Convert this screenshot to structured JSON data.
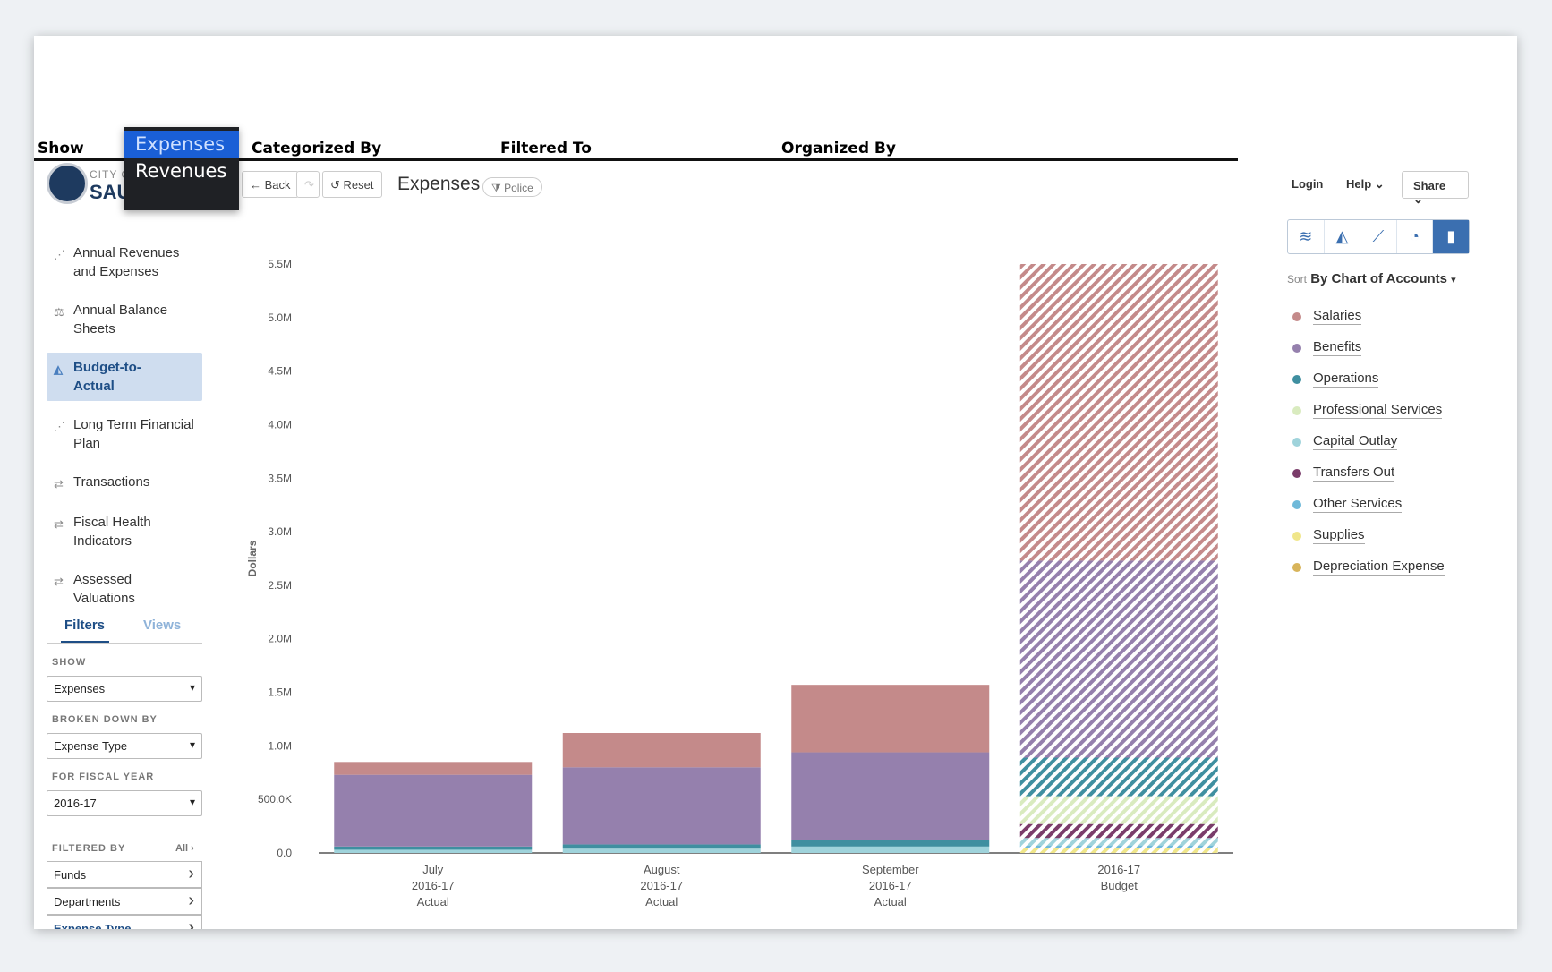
{
  "excel": {
    "labels": [
      "Show",
      "Categorized By",
      "Filtered To",
      "Organized By"
    ],
    "dropdown_options": [
      "Expenses",
      "Revenues"
    ],
    "dropdown_selected": "Expenses"
  },
  "brand": {
    "small": "CITY O",
    "big": "SAU"
  },
  "nav": [
    {
      "label": "Annual Revenues and Expenses",
      "icon": "scatter-icon"
    },
    {
      "label": "Annual Balance Sheets",
      "icon": "balance-scale-icon"
    },
    {
      "label": "Budget-to-Actual",
      "icon": "area-chart-icon",
      "active": true
    },
    {
      "label": "Long Term Financial Plan",
      "icon": "scatter-icon"
    },
    {
      "label": "Transactions",
      "icon": "transfer-icon"
    },
    {
      "label": "Fiscal Health Indicators",
      "icon": "transfer-icon"
    },
    {
      "label": "Assessed Valuations",
      "icon": "transfer-icon"
    }
  ],
  "tabs": {
    "filters": "Filters",
    "views": "Views"
  },
  "filters": {
    "show_label": "SHOW",
    "show_value": "Expenses",
    "broken_label": "BROKEN DOWN BY",
    "broken_value": "Expense Type",
    "fy_label": "FOR FISCAL YEAR",
    "fy_value": "2016-17",
    "filtered_label": "FILTERED BY",
    "all_label": "All",
    "rows": [
      "Funds",
      "Departments",
      "Expense Type"
    ]
  },
  "toolbar": {
    "back": "Back",
    "reset": "Reset",
    "title": "Expenses",
    "pill": "Police",
    "login": "Login",
    "help": "Help",
    "share": "Share"
  },
  "sort": {
    "prefix": "Sort",
    "value": "By Chart of Accounts"
  },
  "colors": {
    "Salaries": "#c48a8a",
    "Benefits": "#9580ad",
    "Operations": "#3f8fa0",
    "Professional Services": "#d9ebbf",
    "Capital Outlay": "#9fd3db",
    "Transfers Out": "#7a3c6a",
    "Other Services": "#6fb9d9",
    "Supplies": "#f0e68a",
    "Depreciation Expense": "#d8b45a"
  },
  "chart_data": {
    "type": "bar",
    "stacked": true,
    "ylabel": "Dollars",
    "ylim": [
      0,
      5500000
    ],
    "yticks": [
      "0.0",
      "500.0K",
      "1.0M",
      "1.5M",
      "2.0M",
      "2.5M",
      "3.0M",
      "3.5M",
      "4.0M",
      "4.5M",
      "5.0M",
      "5.5M"
    ],
    "categories": [
      [
        "July",
        "2016-17",
        "Actual"
      ],
      [
        "August",
        "2016-17",
        "Actual"
      ],
      [
        "September",
        "2016-17",
        "Actual"
      ],
      [
        "2016-17",
        "Budget"
      ]
    ],
    "hatched": [
      false,
      false,
      false,
      true
    ],
    "series": [
      {
        "name": "Supplies",
        "values": [
          0,
          0,
          0,
          50000
        ]
      },
      {
        "name": "Other Services",
        "values": [
          0,
          0,
          0,
          20000
        ]
      },
      {
        "name": "Capital Outlay",
        "values": [
          30000,
          40000,
          60000,
          70000
        ]
      },
      {
        "name": "Transfers Out",
        "values": [
          0,
          0,
          0,
          130000
        ]
      },
      {
        "name": "Professional Services",
        "values": [
          0,
          0,
          0,
          260000
        ]
      },
      {
        "name": "Operations",
        "values": [
          30000,
          40000,
          60000,
          360000
        ]
      },
      {
        "name": "Benefits",
        "values": [
          670000,
          720000,
          820000,
          1840000
        ]
      },
      {
        "name": "Salaries",
        "values": [
          120000,
          320000,
          630000,
          2770000
        ]
      }
    ]
  },
  "legend": [
    "Salaries",
    "Benefits",
    "Operations",
    "Professional Services",
    "Capital Outlay",
    "Transfers Out",
    "Other Services",
    "Supplies",
    "Depreciation Expense"
  ]
}
